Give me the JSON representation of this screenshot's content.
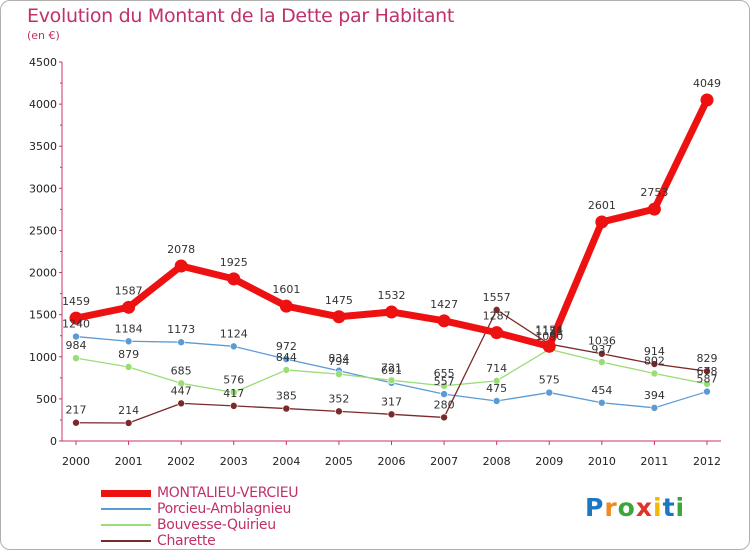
{
  "header": {
    "title": "Evolution du Montant de la Dette par Habitant",
    "subtitle": "(en €)"
  },
  "logo": {
    "letters": [
      "P",
      "r",
      "o",
      "x",
      "i",
      "t",
      "i"
    ],
    "colors": [
      "#1a78c2",
      "#f08a1c",
      "#3ca53c",
      "#e0322d",
      "#f5b800",
      "#1a78c2",
      "#3ca53c"
    ]
  },
  "chart_data": {
    "type": "line",
    "title": "Evolution du Montant de la Dette par Habitant",
    "subtitle": "(en €)",
    "xlabel": "",
    "ylabel": "",
    "categories": [
      "2000",
      "2001",
      "2002",
      "2003",
      "2004",
      "2005",
      "2006",
      "2007",
      "2008",
      "2009",
      "2010",
      "2011",
      "2012"
    ],
    "ylim": [
      0,
      4500
    ],
    "yticks": [
      0,
      500,
      1000,
      1500,
      2000,
      2500,
      3000,
      3500,
      4000,
      4500
    ],
    "grid": false,
    "legend_position": "bottom-left",
    "series": [
      {
        "name": "MONTALIEU-VERCIEU",
        "color": "#ee1111",
        "width": 7,
        "values": [
          1459,
          1587,
          2078,
          1925,
          1601,
          1475,
          1532,
          1427,
          1287,
          1124,
          2601,
          2753,
          4049
        ]
      },
      {
        "name": "Porcieu-Amblagnieu",
        "color": "#5b9bd5",
        "width": 1.3,
        "values": [
          1240,
          1184,
          1173,
          1124,
          972,
          834,
          691,
          557,
          475,
          575,
          454,
          394,
          587
        ]
      },
      {
        "name": "Bouvesse-Quirieu",
        "color": "#99dd77",
        "width": 1.3,
        "values": [
          984,
          879,
          685,
          576,
          844,
          794,
          721,
          655,
          714,
          1090,
          937,
          802,
          678
        ]
      },
      {
        "name": "Charette",
        "color": "#7a2a2a",
        "width": 1.3,
        "values": [
          217,
          214,
          447,
          417,
          385,
          352,
          317,
          280,
          1557,
          1151,
          1036,
          914,
          829
        ]
      }
    ]
  }
}
